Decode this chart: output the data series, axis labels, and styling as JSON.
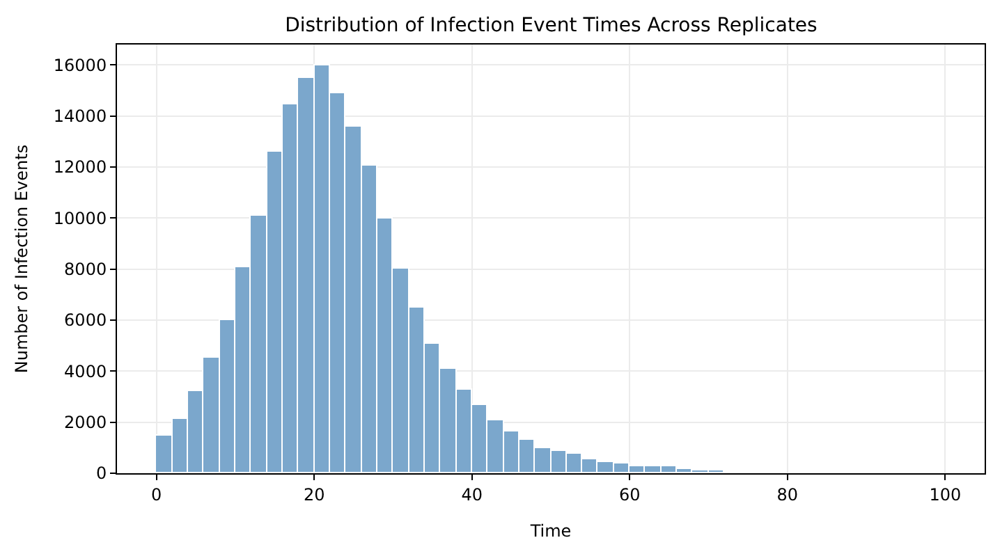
{
  "chart_data": {
    "type": "histogram",
    "title": "Distribution of Infection Event Times Across Replicates",
    "xlabel": "Time",
    "ylabel": "Number of Infection Events",
    "bins": [
      0,
      2,
      4,
      6,
      8,
      10,
      12,
      14,
      16,
      18,
      20,
      22,
      24,
      26,
      28,
      30,
      32,
      34,
      36,
      38,
      40,
      42,
      44,
      46,
      48,
      50,
      52,
      54,
      56,
      58,
      60,
      62,
      64,
      66,
      68,
      70,
      72,
      74,
      76,
      78,
      80,
      82,
      84,
      86,
      88,
      90,
      92,
      94,
      96,
      98,
      100
    ],
    "values": [
      1500,
      2150,
      3200,
      4550,
      6000,
      8100,
      10100,
      12600,
      14450,
      15500,
      16000,
      14900,
      13600,
      12050,
      10000,
      8000,
      6500,
      5100,
      4100,
      3300,
      2650,
      2050,
      1650,
      1300,
      1000,
      850,
      750,
      550,
      450,
      400,
      300,
      250,
      250,
      150,
      130,
      130,
      80,
      70,
      60,
      0,
      0,
      0,
      0,
      0,
      0,
      0,
      0,
      0,
      0,
      0
    ],
    "color": "#7ba7cc",
    "xlim": [
      -5,
      105
    ],
    "ylim": [
      0,
      16800
    ],
    "xticks": [
      0,
      20,
      40,
      60,
      80,
      100
    ],
    "yticks": [
      0,
      2000,
      4000,
      6000,
      8000,
      10000,
      12000,
      14000,
      16000
    ],
    "grid": true
  }
}
